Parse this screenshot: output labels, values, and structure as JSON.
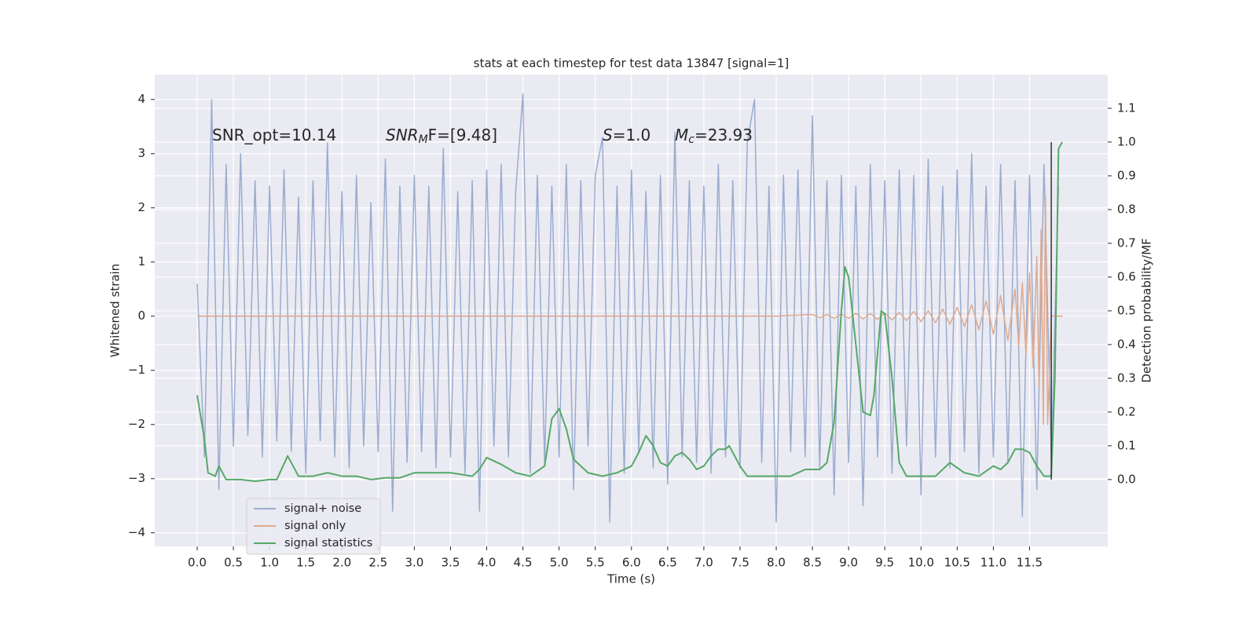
{
  "chart_data": {
    "type": "line",
    "title": "stats at each timestep for test data 13847 [signal=1]",
    "xlabel": "Time (s)",
    "ylabel": "Whitened strain",
    "y2label": "Detection probability/MF",
    "annotations": [
      {
        "base": "SNR_opt=10.14"
      },
      {
        "base": "SNR",
        "sub": "M",
        "tail": "F=[9.48]"
      },
      {
        "base": "S",
        "tail": "=1.0"
      },
      {
        "base": "M",
        "sub": "c",
        "tail": "=23.93"
      }
    ],
    "xlim": [
      -0.586,
      12.58
    ],
    "ylim": [
      -4.25,
      4.46
    ],
    "y2lim": [
      -0.198,
      1.2
    ],
    "xticks": [
      {
        "value": 0,
        "label": "0.0"
      },
      0.5,
      {
        "value": 1,
        "label": "1.0"
      },
      1.5,
      {
        "value": 2,
        "label": "2.0"
      },
      2.5,
      {
        "value": 3,
        "label": "3.0"
      },
      3.5,
      {
        "value": 4,
        "label": "4.0"
      },
      4.5,
      {
        "value": 5,
        "label": "5.0"
      },
      5.5,
      {
        "value": 6,
        "label": "6.0"
      },
      6.5,
      {
        "value": 7,
        "label": "7.0"
      },
      7.5,
      {
        "value": 8,
        "label": "8.0"
      },
      8.5,
      {
        "value": 9,
        "label": "9.0"
      },
      9.5,
      {
        "value": 10,
        "label": "10.0"
      },
      10.5,
      {
        "value": 11,
        "label": "11.0"
      },
      11.5
    ],
    "yticks": [
      {
        "value": -4,
        "label": "−4"
      },
      {
        "value": -3,
        "label": "−3"
      },
      {
        "value": -2,
        "label": "−2"
      },
      {
        "value": -1,
        "label": "−1"
      },
      0,
      1,
      2,
      3,
      4
    ],
    "y2ticks": [
      {
        "value": 0,
        "label": "0.0"
      },
      0.1,
      0.2,
      0.3,
      0.4,
      0.5,
      0.6,
      0.7,
      0.8,
      0.9,
      {
        "value": 1,
        "label": "1.0"
      },
      1.1
    ],
    "grid": true,
    "legend": "lower left",
    "vline": {
      "x": 11.8,
      "ymin": 0,
      "ymax": 1.0,
      "axis": "y2",
      "color": "#333333"
    },
    "series": [
      {
        "name": "signal+ noise",
        "color": "#9aaccf",
        "x": [
          0,
          0.1,
          0.2,
          0.3,
          0.4,
          0.5,
          0.6,
          0.7,
          0.8,
          0.9,
          1.0,
          1.1,
          1.2,
          1.3,
          1.4,
          1.5,
          1.6,
          1.7,
          1.8,
          1.9,
          2.0,
          2.1,
          2.2,
          2.3,
          2.4,
          2.5,
          2.6,
          2.7,
          2.8,
          2.9,
          3.0,
          3.1,
          3.2,
          3.3,
          3.4,
          3.5,
          3.6,
          3.7,
          3.8,
          3.9,
          4.0,
          4.1,
          4.2,
          4.3,
          4.4,
          4.5,
          4.6,
          4.7,
          4.8,
          4.9,
          5.0,
          5.1,
          5.2,
          5.3,
          5.4,
          5.5,
          5.6,
          5.7,
          5.8,
          5.9,
          6.0,
          6.1,
          6.2,
          6.3,
          6.4,
          6.5,
          6.6,
          6.7,
          6.8,
          6.9,
          7.0,
          7.1,
          7.2,
          7.3,
          7.4,
          7.5,
          7.6,
          7.7,
          7.8,
          7.9,
          8.0,
          8.1,
          8.2,
          8.3,
          8.4,
          8.5,
          8.6,
          8.7,
          8.8,
          8.9,
          9.0,
          9.1,
          9.2,
          9.3,
          9.4,
          9.5,
          9.6,
          9.7,
          9.8,
          9.9,
          10.0,
          10.1,
          10.2,
          10.3,
          10.4,
          10.5,
          10.6,
          10.7,
          10.8,
          10.9,
          11.0,
          11.1,
          11.2,
          11.3,
          11.4,
          11.5,
          11.6,
          11.7,
          11.8,
          11.9
        ],
        "values": [
          0.6,
          -2.6,
          4.0,
          -3.2,
          2.8,
          -2.4,
          3.0,
          -2.2,
          2.5,
          -2.6,
          2.4,
          -2.3,
          2.7,
          -2.5,
          2.2,
          -2.9,
          2.5,
          -2.3,
          3.2,
          -2.6,
          2.3,
          -2.8,
          2.6,
          -2.4,
          2.1,
          -2.5,
          2.9,
          -3.6,
          2.4,
          -2.7,
          2.6,
          -2.5,
          2.4,
          -2.8,
          3.1,
          -2.6,
          2.3,
          -2.9,
          2.5,
          -3.6,
          2.7,
          -2.4,
          2.8,
          -2.6,
          2.3,
          4.1,
          -2.9,
          2.6,
          -2.7,
          2.4,
          -2.6,
          2.8,
          -3.2,
          2.5,
          -2.4,
          2.6,
          3.3,
          -3.8,
          2.4,
          -2.9,
          2.7,
          -2.5,
          2.3,
          -2.8,
          2.6,
          -3.1,
          3.4,
          -2.6,
          2.5,
          -2.7,
          2.4,
          -2.9,
          2.8,
          -2.6,
          2.5,
          -2.8,
          3.2,
          4.0,
          -2.7,
          2.4,
          -3.8,
          2.6,
          -2.5,
          2.7,
          -2.6,
          3.7,
          -2.8,
          2.5,
          -3.3,
          2.6,
          -2.7,
          2.4,
          -3.5,
          2.8,
          -2.6,
          2.5,
          -2.9,
          2.7,
          -2.4,
          2.6,
          -3.3,
          2.9,
          -2.6,
          2.4,
          -2.8,
          2.7,
          -2.5,
          3.0,
          -2.9,
          2.4,
          -2.6,
          2.8,
          -2.7,
          2.5,
          -3.7,
          2.6,
          -3.2,
          2.8,
          -2.6,
          2.4
        ]
      },
      {
        "name": "signal only",
        "color": "#e0a98e",
        "x": [
          0,
          8.0,
          8.5,
          8.6,
          8.7,
          8.8,
          8.9,
          9.0,
          9.1,
          9.2,
          9.3,
          9.4,
          9.5,
          9.6,
          9.7,
          9.8,
          9.9,
          10.0,
          10.1,
          10.2,
          10.3,
          10.4,
          10.5,
          10.6,
          10.7,
          10.8,
          10.9,
          11.0,
          11.1,
          11.2,
          11.3,
          11.35,
          11.4,
          11.45,
          11.5,
          11.55,
          11.6,
          11.63,
          11.66,
          11.69,
          11.72,
          11.75,
          11.8,
          11.9,
          11.96
        ],
        "values": [
          0,
          0,
          0.03,
          -0.03,
          0.03,
          -0.04,
          0.04,
          -0.04,
          0.05,
          -0.05,
          0.05,
          -0.06,
          0.06,
          -0.07,
          0.07,
          -0.08,
          0.09,
          -0.1,
          0.1,
          -0.12,
          0.13,
          -0.15,
          0.16,
          -0.19,
          0.21,
          -0.25,
          0.28,
          -0.33,
          0.38,
          -0.45,
          0.5,
          -0.55,
          0.62,
          -0.7,
          0.8,
          -0.95,
          1.1,
          -1.3,
          1.6,
          -2.0,
          2.2,
          -2.0,
          0,
          0,
          0
        ]
      },
      {
        "name": "signal statistics",
        "color": "#55a868",
        "axis": "y2",
        "x": [
          0,
          0.1,
          0.15,
          0.25,
          0.3,
          0.4,
          0.6,
          0.8,
          1.0,
          1.1,
          1.25,
          1.4,
          1.6,
          1.8,
          2.0,
          2.2,
          2.4,
          2.6,
          2.8,
          3.0,
          3.2,
          3.5,
          3.8,
          3.9,
          4.0,
          4.2,
          4.4,
          4.6,
          4.8,
          4.9,
          5.0,
          5.1,
          5.2,
          5.4,
          5.6,
          5.8,
          6.0,
          6.1,
          6.2,
          6.3,
          6.4,
          6.5,
          6.6,
          6.7,
          6.8,
          6.9,
          7.0,
          7.1,
          7.2,
          7.3,
          7.35,
          7.5,
          7.6,
          7.8,
          8.0,
          8.2,
          8.4,
          8.6,
          8.7,
          8.8,
          8.9,
          8.95,
          9.0,
          9.1,
          9.2,
          9.3,
          9.35,
          9.45,
          9.5,
          9.6,
          9.7,
          9.8,
          10.0,
          10.2,
          10.4,
          10.6,
          10.8,
          11.0,
          11.1,
          11.2,
          11.3,
          11.4,
          11.5,
          11.6,
          11.7,
          11.8,
          11.85,
          11.9,
          11.95
        ],
        "values": [
          0.25,
          0.12,
          0.02,
          0.01,
          0.04,
          0.0,
          0.0,
          -0.005,
          0.0,
          0.0,
          0.07,
          0.01,
          0.01,
          0.02,
          0.01,
          0.01,
          0.0,
          0.005,
          0.005,
          0.02,
          0.02,
          0.02,
          0.01,
          0.03,
          0.065,
          0.045,
          0.02,
          0.01,
          0.04,
          0.18,
          0.21,
          0.15,
          0.06,
          0.02,
          0.01,
          0.02,
          0.04,
          0.08,
          0.13,
          0.1,
          0.05,
          0.04,
          0.07,
          0.08,
          0.06,
          0.03,
          0.04,
          0.07,
          0.09,
          0.09,
          0.1,
          0.04,
          0.01,
          0.01,
          0.01,
          0.01,
          0.03,
          0.03,
          0.05,
          0.17,
          0.5,
          0.63,
          0.6,
          0.4,
          0.2,
          0.19,
          0.25,
          0.5,
          0.49,
          0.3,
          0.05,
          0.01,
          0.01,
          0.01,
          0.05,
          0.02,
          0.01,
          0.04,
          0.03,
          0.05,
          0.09,
          0.09,
          0.08,
          0.04,
          0.01,
          0.01,
          0.3,
          0.98,
          1.0
        ]
      }
    ]
  }
}
